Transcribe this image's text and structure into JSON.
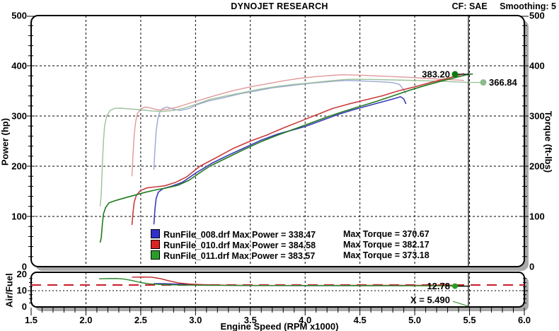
{
  "header": {
    "title": "DYNOJET RESEARCH",
    "cf": "CF: SAE",
    "smoothing": "Smoothing: 5"
  },
  "axes": {
    "x": {
      "label": "Engine Speed (RPM x1000)",
      "min": 1.5,
      "max": 6.0,
      "major_ticks": [
        1.5,
        2.0,
        2.5,
        3.0,
        3.5,
        4.0,
        4.5,
        5.0,
        5.5,
        6.0
      ],
      "minor_step": 0.1
    },
    "power": {
      "label": "Power (hp)",
      "min": 0,
      "max": 500,
      "major_ticks": [
        0,
        100,
        200,
        300,
        400,
        500
      ],
      "minor_step": 20
    },
    "torque": {
      "label": "Torque (ft-lbs)",
      "min": 0,
      "max": 500,
      "major_ticks": [
        0,
        100,
        200,
        300,
        400,
        500
      ],
      "minor_step": 20
    },
    "afr": {
      "label": "Air/Fuel",
      "min": 0,
      "max": 20,
      "major_ticks": [
        0,
        10,
        20
      ],
      "minor_step": 2.5
    }
  },
  "legend": {
    "rows": [
      {
        "color": "#3030cc",
        "power_text": "RunFile_008.drf Max Power = 338.47",
        "torque_text": "Max Torque = 370.67"
      },
      {
        "color": "#dd2222",
        "power_text": "RunFile_010.drf Max Power = 384.58",
        "torque_text": "Max Torque = 382.17"
      },
      {
        "color": "#2a9e2a",
        "power_text": "RunFile_011.drf Max Power = 383.57",
        "torque_text": "Max Torque = 373.18"
      }
    ]
  },
  "colors": {
    "power_blue": "#3a3ab8",
    "power_red": "#c93d3d",
    "power_green": "#1f7a1f",
    "torque_blue": "#9aa8d2",
    "torque_red": "#e09a9a",
    "torque_green": "#9cc09c",
    "afr_blue": "#2a2aa8",
    "afr_red": "#bb2222",
    "afr_green": "#2a8a2a",
    "marker_power": "#0f7a0f",
    "marker_torque": "#8cbb8c",
    "marker_afr": "#22a022",
    "ref_red": "#cc2233",
    "grid": "#000000",
    "frame": "#000000",
    "shadow": "#aaaaaa"
  },
  "annotations": {
    "cursor": {
      "x": 5.49,
      "label": "X = 5.490"
    },
    "markers": [
      {
        "chart": 0,
        "series": "power_011",
        "value_text": "383.20",
        "x": 5.49,
        "y": 383.2,
        "side": "left",
        "color_key": "marker_power"
      },
      {
        "chart": 0,
        "series": "torque_011",
        "value_text": "366.84",
        "x": 5.49,
        "y": 366.84,
        "side": "right",
        "color_key": "marker_torque"
      },
      {
        "chart": 1,
        "series": "afr_011",
        "value_text": "12.78",
        "x": 5.49,
        "y": 12.78,
        "side": "left",
        "color_key": "marker_afr"
      }
    ]
  },
  "chart_data": [
    {
      "type": "line",
      "title": "DYNOJET RESEARCH",
      "xlabel": "Engine Speed (RPM x1000)",
      "ylabel_left": "Power (hp)",
      "ylabel_right": "Torque (ft-lbs)",
      "xlim": [
        1.5,
        6.0
      ],
      "ylim": [
        0,
        500
      ],
      "grid": true,
      "legend_position": "inside-bottom",
      "series": [
        {
          "name": "power_008",
          "color_key": "power_blue",
          "points": [
            [
              2.62,
              84
            ],
            [
              2.63,
              115
            ],
            [
              2.64,
              135
            ],
            [
              2.66,
              148
            ],
            [
              2.7,
              155
            ],
            [
              2.78,
              160
            ],
            [
              2.88,
              168
            ],
            [
              3.0,
              186
            ],
            [
              3.15,
              206
            ],
            [
              3.3,
              222
            ],
            [
              3.45,
              237
            ],
            [
              3.6,
              252
            ],
            [
              3.75,
              264
            ],
            [
              3.9,
              273
            ],
            [
              4.0,
              279
            ],
            [
              4.15,
              291
            ],
            [
              4.3,
              303
            ],
            [
              4.45,
              313
            ],
            [
              4.6,
              322
            ],
            [
              4.72,
              329
            ],
            [
              4.82,
              335
            ],
            [
              4.87,
              338.4
            ],
            [
              4.9,
              334
            ],
            [
              4.92,
              324
            ]
          ]
        },
        {
          "name": "power_010",
          "color_key": "power_red",
          "points": [
            [
              2.42,
              83
            ],
            [
              2.43,
              108
            ],
            [
              2.44,
              128
            ],
            [
              2.46,
              142
            ],
            [
              2.5,
              152
            ],
            [
              2.56,
              157
            ],
            [
              2.64,
              159
            ],
            [
              2.72,
              161
            ],
            [
              2.82,
              168
            ],
            [
              2.92,
              179
            ],
            [
              3.04,
              200
            ],
            [
              3.18,
              216
            ],
            [
              3.34,
              235
            ],
            [
              3.5,
              250
            ],
            [
              3.65,
              262
            ],
            [
              3.8,
              276
            ],
            [
              3.95,
              289
            ],
            [
              4.1,
              302
            ],
            [
              4.25,
              315
            ],
            [
              4.4,
              324
            ],
            [
              4.55,
              332
            ],
            [
              4.7,
              340
            ],
            [
              4.85,
              350
            ],
            [
              5.0,
              358
            ],
            [
              5.15,
              367
            ],
            [
              5.28,
              374
            ],
            [
              5.38,
              380
            ],
            [
              5.45,
              384.5
            ]
          ]
        },
        {
          "name": "power_011",
          "color_key": "power_green",
          "points": [
            [
              2.13,
              48
            ],
            [
              2.14,
              58
            ],
            [
              2.15,
              85
            ],
            [
              2.16,
              105
            ],
            [
              2.18,
              118
            ],
            [
              2.21,
              127
            ],
            [
              2.26,
              131
            ],
            [
              2.34,
              136
            ],
            [
              2.44,
              142
            ],
            [
              2.54,
              148
            ],
            [
              2.64,
              153
            ],
            [
              2.74,
              157
            ],
            [
              2.84,
              162
            ],
            [
              2.94,
              172
            ],
            [
              3.06,
              190
            ],
            [
              3.13,
              200
            ],
            [
              3.28,
              216
            ],
            [
              3.44,
              233
            ],
            [
              3.6,
              249
            ],
            [
              3.75,
              262
            ],
            [
              3.9,
              274
            ],
            [
              4.05,
              286
            ],
            [
              4.2,
              298
            ],
            [
              4.35,
              309
            ],
            [
              4.5,
              319
            ],
            [
              4.65,
              329
            ],
            [
              4.8,
              340
            ],
            [
              4.95,
              351
            ],
            [
              5.1,
              361
            ],
            [
              5.25,
              370
            ],
            [
              5.38,
              377
            ],
            [
              5.49,
              383.2
            ],
            [
              5.53,
              383.5
            ]
          ]
        },
        {
          "name": "torque_008",
          "color_key": "torque_blue",
          "points": [
            [
              2.62,
              193
            ],
            [
              2.63,
              235
            ],
            [
              2.64,
              268
            ],
            [
              2.655,
              293
            ],
            [
              2.67,
              306
            ],
            [
              2.7,
              315
            ],
            [
              2.74,
              318
            ],
            [
              2.79,
              314
            ],
            [
              2.86,
              311
            ],
            [
              2.94,
              315
            ],
            [
              3.02,
              323
            ],
            [
              3.12,
              330
            ],
            [
              3.25,
              336
            ],
            [
              3.4,
              344
            ],
            [
              3.55,
              350
            ],
            [
              3.7,
              356
            ],
            [
              3.85,
              360
            ],
            [
              4.0,
              364
            ],
            [
              4.15,
              367
            ],
            [
              4.3,
              369.8
            ],
            [
              4.4,
              370.7
            ],
            [
              4.55,
              369.5
            ],
            [
              4.7,
              368
            ],
            [
              4.8,
              366.5
            ],
            [
              4.86,
              363
            ],
            [
              4.9,
              352
            ],
            [
              4.92,
              345
            ]
          ]
        },
        {
          "name": "torque_010",
          "color_key": "torque_red",
          "points": [
            [
              2.42,
              180
            ],
            [
              2.43,
              225
            ],
            [
              2.44,
              262
            ],
            [
              2.455,
              290
            ],
            [
              2.47,
              305
            ],
            [
              2.5,
              314
            ],
            [
              2.54,
              318
            ],
            [
              2.59,
              316
            ],
            [
              2.66,
              312
            ],
            [
              2.74,
              313
            ],
            [
              2.84,
              318
            ],
            [
              2.94,
              325
            ],
            [
              3.06,
              333
            ],
            [
              3.2,
              342
            ],
            [
              3.35,
              351
            ],
            [
              3.5,
              358
            ],
            [
              3.65,
              364
            ],
            [
              3.8,
              370
            ],
            [
              3.95,
              375
            ],
            [
              4.1,
              378.5
            ],
            [
              4.25,
              381
            ],
            [
              4.35,
              382.2
            ],
            [
              4.5,
              381.2
            ],
            [
              4.65,
              379.8
            ],
            [
              4.8,
              378.5
            ],
            [
              4.95,
              377
            ],
            [
              5.1,
              375
            ],
            [
              5.25,
              373.2
            ],
            [
              5.38,
              371.8
            ],
            [
              5.45,
              370.8
            ]
          ]
        },
        {
          "name": "torque_011",
          "color_key": "torque_green",
          "points": [
            [
              2.13,
              120
            ],
            [
              2.14,
              145
            ],
            [
              2.15,
              205
            ],
            [
              2.16,
              250
            ],
            [
              2.17,
              280
            ],
            [
              2.19,
              300
            ],
            [
              2.22,
              311
            ],
            [
              2.26,
              315
            ],
            [
              2.32,
              315.5
            ],
            [
              2.4,
              314
            ],
            [
              2.5,
              312.5
            ],
            [
              2.6,
              310
            ],
            [
              2.7,
              309
            ],
            [
              2.8,
              311
            ],
            [
              2.9,
              316
            ],
            [
              3.0,
              323
            ],
            [
              3.13,
              333
            ],
            [
              3.28,
              340
            ],
            [
              3.44,
              347
            ],
            [
              3.6,
              354
            ],
            [
              3.75,
              359
            ],
            [
              3.9,
              363
            ],
            [
              4.05,
              366
            ],
            [
              4.2,
              369.5
            ],
            [
              4.35,
              372.5
            ],
            [
              4.45,
              373.2
            ],
            [
              4.6,
              372.8
            ],
            [
              4.75,
              372
            ],
            [
              4.9,
              371.3
            ],
            [
              5.05,
              370.5
            ],
            [
              5.2,
              369.3
            ],
            [
              5.35,
              368.2
            ],
            [
              5.49,
              366.84
            ]
          ]
        }
      ]
    },
    {
      "type": "line",
      "ylabel_left": "Air/Fuel",
      "xlim": [
        1.5,
        6.0
      ],
      "ylim": [
        0,
        20
      ],
      "grid": true,
      "ref_lines": [
        {
          "value": 13.5,
          "style": "dashed",
          "color_key": "ref_red"
        },
        {
          "value": 10,
          "style": "dotted",
          "color_key": "grid"
        }
      ],
      "series": [
        {
          "name": "afr_008",
          "color_key": "afr_blue",
          "points": [
            [
              2.62,
              14.35
            ],
            [
              2.72,
              14.3
            ],
            [
              2.85,
              14.0
            ],
            [
              3.0,
              13.65
            ],
            [
              3.15,
              13.45
            ],
            [
              3.3,
              13.3
            ],
            [
              3.5,
              13.2
            ],
            [
              3.7,
              13.15
            ],
            [
              4.0,
              13.1
            ],
            [
              4.3,
              13.1
            ],
            [
              4.6,
              13.1
            ],
            [
              4.92,
              13.1
            ]
          ]
        },
        {
          "name": "afr_010",
          "color_key": "afr_red",
          "points": [
            [
              2.42,
              18.3
            ],
            [
              2.52,
              18.4
            ],
            [
              2.6,
              18.3
            ],
            [
              2.68,
              17.4
            ],
            [
              2.76,
              16.0
            ],
            [
              2.84,
              14.8
            ],
            [
              2.94,
              14.1
            ],
            [
              3.06,
              13.7
            ],
            [
              3.2,
              13.45
            ],
            [
              3.4,
              13.3
            ],
            [
              3.6,
              13.25
            ],
            [
              3.9,
              13.25
            ],
            [
              4.2,
              13.25
            ],
            [
              4.5,
              13.3
            ],
            [
              4.8,
              13.3
            ],
            [
              5.1,
              13.3
            ],
            [
              5.45,
              13.35
            ]
          ]
        },
        {
          "name": "afr_011",
          "color_key": "afr_green",
          "points": [
            [
              2.12,
              17.3
            ],
            [
              2.2,
              17.45
            ],
            [
              2.28,
              17.5
            ],
            [
              2.34,
              17.2
            ],
            [
              2.42,
              16.3
            ],
            [
              2.5,
              15.0
            ],
            [
              2.58,
              14.2
            ],
            [
              2.68,
              13.8
            ],
            [
              2.8,
              13.55
            ],
            [
              2.95,
              13.4
            ],
            [
              3.1,
              13.3
            ],
            [
              3.3,
              13.25
            ],
            [
              3.6,
              13.2
            ],
            [
              3.9,
              13.2
            ],
            [
              4.2,
              13.15
            ],
            [
              4.5,
              13.1
            ],
            [
              4.8,
              13.05
            ],
            [
              5.05,
              13.0
            ],
            [
              5.25,
              12.95
            ],
            [
              5.4,
              12.85
            ],
            [
              5.49,
              12.78
            ]
          ]
        }
      ]
    }
  ]
}
